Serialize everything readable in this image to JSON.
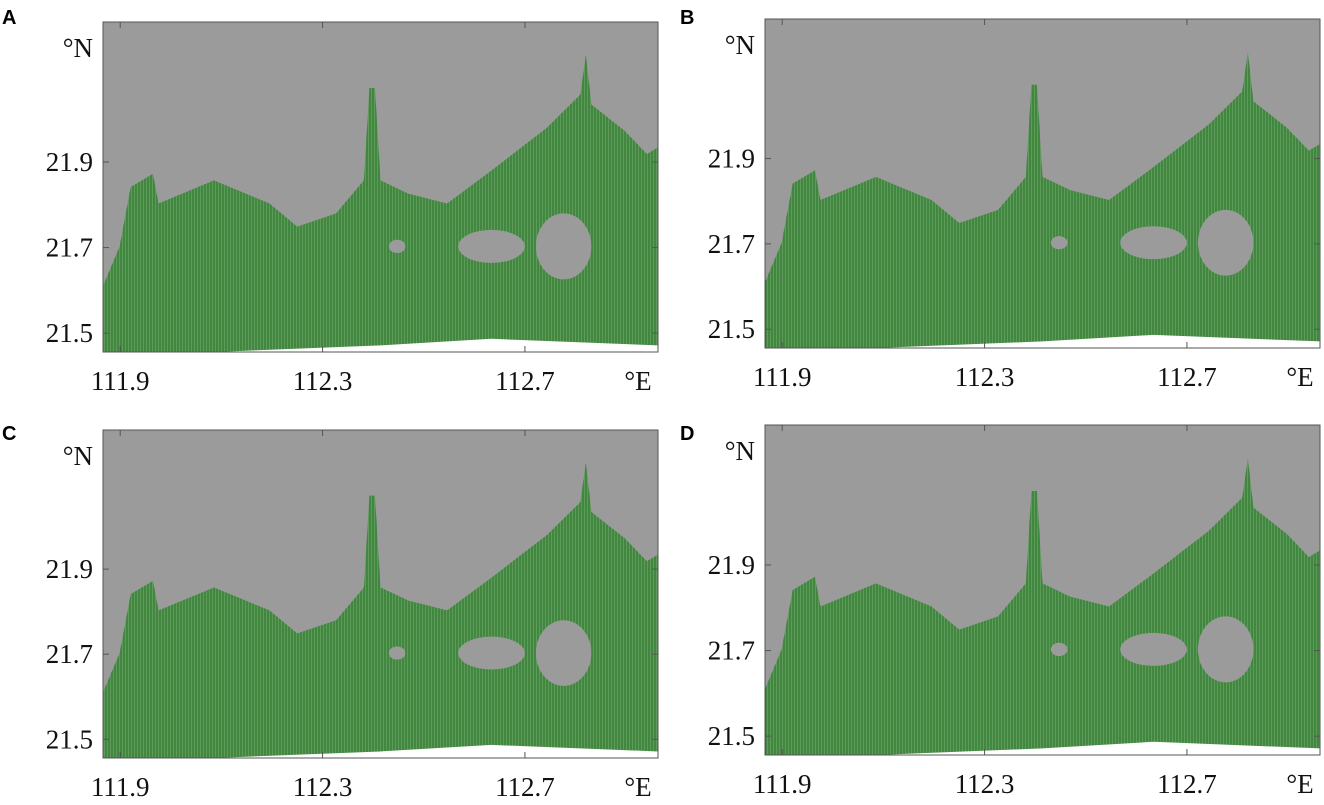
{
  "panels": [
    {
      "label": "A",
      "lat_unit": "°N",
      "lon_unit": "°E",
      "xlim": [
        111.866,
        112.963
      ],
      "ylim": [
        21.456,
        22.227
      ],
      "xticks": [
        111.9,
        112.3,
        112.7
      ],
      "yticks": [
        21.5,
        21.7,
        21.9
      ]
    },
    {
      "label": "B",
      "lat_unit": "°N",
      "lon_unit": "°E",
      "xlim": [
        111.866,
        112.963
      ],
      "ylim": [
        21.456,
        22.227
      ],
      "xticks": [
        111.9,
        112.3,
        112.7
      ],
      "yticks": [
        21.5,
        21.7,
        21.9
      ]
    },
    {
      "label": "C",
      "lat_unit": "°N",
      "lon_unit": "°E",
      "xlim": [
        111.866,
        112.963
      ],
      "ylim": [
        21.456,
        22.227
      ],
      "xticks": [
        111.9,
        112.3,
        112.7
      ],
      "yticks": [
        21.5,
        21.7,
        21.9
      ]
    },
    {
      "label": "D",
      "lat_unit": "°N",
      "lon_unit": "°E",
      "xlim": [
        111.866,
        112.963
      ],
      "ylim": [
        21.456,
        22.227
      ],
      "xticks": [
        111.9,
        112.3,
        112.7
      ],
      "yticks": [
        21.5,
        21.7,
        21.9
      ]
    }
  ]
}
